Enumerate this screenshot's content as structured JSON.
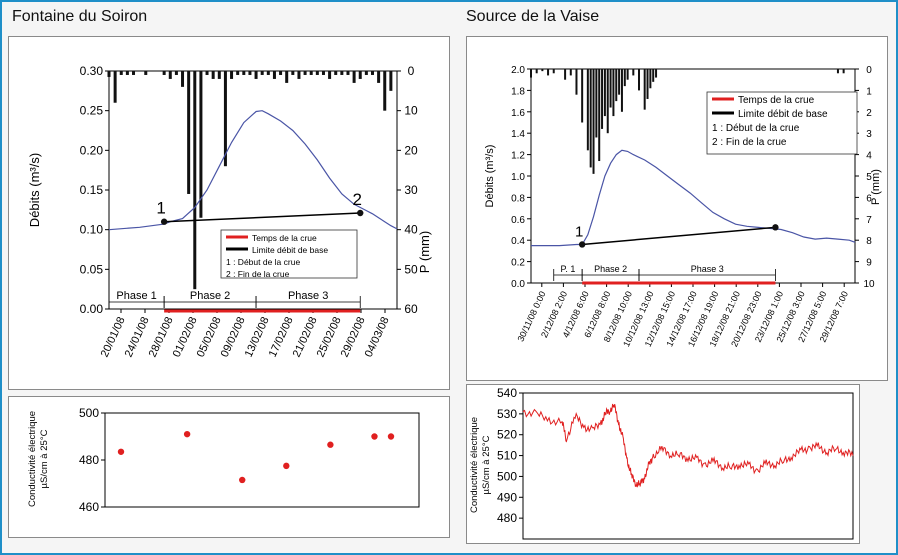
{
  "panels": [
    {
      "title": "Fontaine du Soiron"
    },
    {
      "title": "Source de la Vaise"
    }
  ],
  "chart_data": [
    {
      "type": "line",
      "panel": "Fontaine du Soiron",
      "ylabel": "Débits (m³/s)",
      "y2label": "P (mm)",
      "ylim": [
        0,
        0.3
      ],
      "y_ticks": [
        "0.00",
        "0.05",
        "0.10",
        "0.15",
        "0.20",
        "0.25",
        "0.30"
      ],
      "y2lim": [
        60,
        0
      ],
      "y2_ticks": [
        "0",
        "10",
        "20",
        "30",
        "40",
        "50",
        "60"
      ],
      "x_tick_labels": [
        "20/01/08",
        "24/01/08",
        "28/01/08",
        "01/02/08",
        "05/02/08",
        "09/02/08",
        "13/02/08",
        "17/02/08",
        "21/02/08",
        "25/02/08",
        "29/02/08",
        "04/03/08"
      ],
      "discharge_series": [
        [
          0,
          0.1
        ],
        [
          5,
          0.103
        ],
        [
          9,
          0.107
        ],
        [
          10,
          0.11
        ],
        [
          12,
          0.114
        ],
        [
          14,
          0.128
        ],
        [
          16,
          0.15
        ],
        [
          18,
          0.18
        ],
        [
          20,
          0.21
        ],
        [
          22,
          0.235
        ],
        [
          24,
          0.249
        ],
        [
          25,
          0.25
        ],
        [
          26,
          0.246
        ],
        [
          28,
          0.237
        ],
        [
          30,
          0.225
        ],
        [
          32,
          0.208
        ],
        [
          34,
          0.188
        ],
        [
          36,
          0.165
        ],
        [
          38,
          0.145
        ],
        [
          40,
          0.132
        ],
        [
          42,
          0.124
        ],
        [
          43,
          0.12
        ],
        [
          44,
          0.115
        ],
        [
          45,
          0.11
        ],
        [
          46,
          0.105
        ],
        [
          47,
          0.101
        ]
      ],
      "baseflow_line": [
        [
          9,
          0.11
        ],
        [
          41,
          0.121
        ]
      ],
      "precipitation_bars": [
        [
          0,
          1.5
        ],
        [
          1,
          8
        ],
        [
          2,
          1
        ],
        [
          3,
          1
        ],
        [
          4,
          1
        ],
        [
          6,
          1
        ],
        [
          9,
          1
        ],
        [
          10,
          2
        ],
        [
          11,
          1
        ],
        [
          12,
          4
        ],
        [
          13,
          31
        ],
        [
          14,
          55
        ],
        [
          15,
          37
        ],
        [
          16,
          1
        ],
        [
          17,
          2
        ],
        [
          18,
          2
        ],
        [
          19,
          24
        ],
        [
          20,
          2
        ],
        [
          21,
          1
        ],
        [
          22,
          1
        ],
        [
          23,
          1
        ],
        [
          24,
          2
        ],
        [
          25,
          1
        ],
        [
          26,
          1
        ],
        [
          27,
          2
        ],
        [
          28,
          1
        ],
        [
          29,
          3
        ],
        [
          30,
          1
        ],
        [
          31,
          2
        ],
        [
          32,
          1
        ],
        [
          33,
          1
        ],
        [
          34,
          1
        ],
        [
          35,
          1
        ],
        [
          36,
          2
        ],
        [
          37,
          1
        ],
        [
          38,
          1
        ],
        [
          39,
          1
        ],
        [
          40,
          3
        ],
        [
          41,
          2
        ],
        [
          42,
          1
        ],
        [
          43,
          1
        ],
        [
          44,
          3
        ],
        [
          45,
          10
        ],
        [
          46,
          5
        ]
      ],
      "points": [
        {
          "label": "1",
          "x": 9,
          "y": 0.11
        },
        {
          "label": "2",
          "x": 41,
          "y": 0.121
        }
      ],
      "phases": [
        {
          "label": "Phase 1",
          "from": 0,
          "to": 9
        },
        {
          "label": "Phase 2",
          "from": 9,
          "to": 24
        },
        {
          "label": "Phase 3",
          "from": 24,
          "to": 41
        }
      ],
      "flood_bar": {
        "from": 9,
        "to": 41
      },
      "legend": {
        "placement": "center-right",
        "items": [
          "Temps de la crue",
          "Limite débit de base",
          "1 : Début de la crue",
          "2 : Fin de la crue"
        ]
      },
      "colors": {
        "discharge": "#4a55a6",
        "flood": "#e02020",
        "precip": "#111111",
        "conductivity": "#e02020"
      }
    },
    {
      "type": "line",
      "panel": "Source de la Vaise",
      "ylabel": "Débits (m³/s)",
      "y2label": "P (mm)",
      "ylim": [
        0,
        2.0
      ],
      "y_ticks": [
        "0.0",
        "0.2",
        "0.4",
        "0.6",
        "0.8",
        "1.0",
        "1.2",
        "1.4",
        "1.6",
        "1.8",
        "2.0"
      ],
      "y2lim": [
        10,
        0
      ],
      "y2_ticks": [
        "0",
        "1",
        "2",
        "3",
        "4",
        "5",
        "6",
        "7",
        "8",
        "9",
        "10"
      ],
      "x_tick_labels": [
        "30/11/08 0:00",
        "2/12/08 2:00",
        "4/12/08 6:00",
        "6/12/08 8:00",
        "8/12/08 10:00",
        "10/12/08 13:00",
        "12/12/08 15:00",
        "14/12/08 17:00",
        "16/12/08 19:00",
        "18/12/08 21:00",
        "20/12/08 23:00",
        "23/12/08 1:00",
        "25/12/08 3:00",
        "27/12/08 5:00",
        "29/12/08 7:00"
      ],
      "discharge_series": [
        [
          0,
          0.35
        ],
        [
          5,
          0.35
        ],
        [
          8,
          0.36
        ],
        [
          9,
          0.36
        ],
        [
          10,
          0.45
        ],
        [
          11,
          0.62
        ],
        [
          12,
          0.82
        ],
        [
          13,
          1.0
        ],
        [
          14,
          1.12
        ],
        [
          15,
          1.2
        ],
        [
          16,
          1.24
        ],
        [
          17,
          1.23
        ],
        [
          18,
          1.2
        ],
        [
          20,
          1.15
        ],
        [
          22,
          1.08
        ],
        [
          24,
          1.0
        ],
        [
          26,
          0.92
        ],
        [
          28,
          0.84
        ],
        [
          30,
          0.75
        ],
        [
          32,
          0.66
        ],
        [
          34,
          0.6
        ],
        [
          36,
          0.55
        ],
        [
          38,
          0.53
        ],
        [
          40,
          0.52
        ],
        [
          42,
          0.51
        ],
        [
          44,
          0.5
        ],
        [
          46,
          0.47
        ],
        [
          48,
          0.43
        ],
        [
          50,
          0.41
        ],
        [
          52,
          0.42
        ],
        [
          54,
          0.41
        ],
        [
          56,
          0.4
        ],
        [
          57,
          0.38
        ]
      ],
      "baseflow_line": [
        [
          9,
          0.36
        ],
        [
          43,
          0.52
        ]
      ],
      "precipitation_bars": [
        [
          0,
          0.4
        ],
        [
          1,
          0.2
        ],
        [
          2,
          0.1
        ],
        [
          3,
          0.3
        ],
        [
          4,
          0.2
        ],
        [
          6,
          0.5
        ],
        [
          7,
          0.3
        ],
        [
          8,
          1.2
        ],
        [
          9,
          2.5
        ],
        [
          10,
          3.8
        ],
        [
          10.5,
          4.6
        ],
        [
          11,
          4.9
        ],
        [
          11.5,
          3.2
        ],
        [
          12,
          4.3
        ],
        [
          12.5,
          2.8
        ],
        [
          13,
          2.2
        ],
        [
          13.5,
          3.0
        ],
        [
          14,
          1.8
        ],
        [
          14.5,
          2.2
        ],
        [
          15,
          1.5
        ],
        [
          15.5,
          1.2
        ],
        [
          16,
          2.0
        ],
        [
          16.5,
          0.8
        ],
        [
          17,
          0.5
        ],
        [
          18,
          0.3
        ],
        [
          19,
          1.0
        ],
        [
          20,
          1.9
        ],
        [
          20.5,
          1.4
        ],
        [
          21,
          0.9
        ],
        [
          21.5,
          0.6
        ],
        [
          22,
          0.4
        ],
        [
          54,
          0.2
        ],
        [
          55,
          0.2
        ]
      ],
      "points": [
        {
          "label": "1",
          "x": 9,
          "y": 0.36
        },
        {
          "label": "",
          "x": 43,
          "y": 0.52
        }
      ],
      "phases": [
        {
          "label": "P. 1",
          "from": 4,
          "to": 9
        },
        {
          "label": "Phase 2",
          "from": 9,
          "to": 19
        },
        {
          "label": "Phase 3",
          "from": 19,
          "to": 43
        }
      ],
      "flood_bar": {
        "from": 9,
        "to": 43
      },
      "legend": {
        "placement": "top-right",
        "items": [
          "Temps de la crue",
          "Limite débit de base",
          "1 : Début de la crue",
          "2 : Fin de la crue"
        ]
      },
      "colors": {
        "discharge": "#4a55a6",
        "flood": "#e02020",
        "precip": "#111111",
        "conductivity": "#e02020"
      }
    },
    {
      "type": "scatter",
      "panel": "Fontaine du Soiron",
      "ylabel": "Conductivité électrique µS/cm à 25°C",
      "ylim": [
        460,
        500
      ],
      "y_ticks": [
        "460",
        "480",
        "500"
      ],
      "points": [
        [
          0,
          483.5
        ],
        [
          12,
          491
        ],
        [
          22,
          471.5
        ],
        [
          30,
          477.5
        ],
        [
          38,
          486.5
        ],
        [
          46,
          490
        ],
        [
          49,
          490
        ]
      ]
    },
    {
      "type": "line",
      "panel": "Source de la Vaise",
      "ylabel": "Conductivité électrique µS/cm à 25°C",
      "ylim": [
        470,
        540
      ],
      "y_ticks": [
        "480",
        "490",
        "500",
        "510",
        "520",
        "530",
        "540"
      ],
      "series": [
        [
          0,
          531
        ],
        [
          3,
          530
        ],
        [
          6,
          527
        ],
        [
          9,
          526
        ],
        [
          10,
          518
        ],
        [
          12,
          529
        ],
        [
          14,
          524
        ],
        [
          16,
          522
        ],
        [
          18,
          526
        ],
        [
          19,
          530
        ],
        [
          20,
          532
        ],
        [
          21,
          534
        ],
        [
          22,
          526
        ],
        [
          23,
          518
        ],
        [
          24,
          508
        ],
        [
          25,
          500
        ],
        [
          26,
          497
        ],
        [
          27,
          496
        ],
        [
          28,
          500
        ],
        [
          29,
          505
        ],
        [
          30,
          510
        ],
        [
          32,
          513
        ],
        [
          34,
          511
        ],
        [
          36,
          510
        ],
        [
          38,
          509
        ],
        [
          40,
          508
        ],
        [
          42,
          506
        ],
        [
          44,
          507
        ],
        [
          46,
          505
        ],
        [
          48,
          504
        ],
        [
          50,
          506
        ],
        [
          52,
          505
        ],
        [
          54,
          503
        ],
        [
          56,
          506
        ],
        [
          58,
          506
        ],
        [
          60,
          507
        ],
        [
          62,
          510
        ],
        [
          64,
          512
        ],
        [
          66,
          514
        ],
        [
          68,
          514
        ],
        [
          70,
          512
        ],
        [
          72,
          513
        ],
        [
          74,
          512
        ],
        [
          76,
          510
        ]
      ]
    }
  ]
}
